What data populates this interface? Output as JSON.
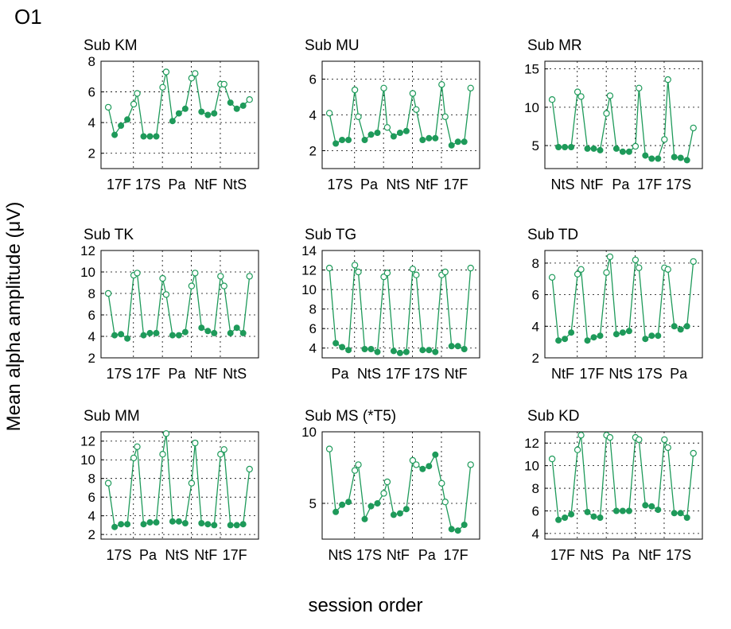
{
  "figure": {
    "label": "O1",
    "ylabel": "Mean alpha amplitude (μV)",
    "xlabel": "session order"
  },
  "style": {
    "series_color": "#1e9a5a",
    "grid_color": "#000000"
  },
  "chart_data": [
    {
      "type": "line",
      "title": "Sub KM",
      "ylim": [
        1,
        8
      ],
      "yticks": [
        2,
        4,
        6,
        8
      ],
      "categories": [
        "17F",
        "17S",
        "Pa",
        "NtF",
        "NtS"
      ],
      "values": [
        [
          5.0,
          3.2,
          3.8,
          4.2,
          5.2
        ],
        [
          5.9,
          3.1,
          3.1,
          3.1,
          6.3
        ],
        [
          7.3,
          4.1,
          4.6,
          4.9,
          6.9
        ],
        [
          7.2,
          4.7,
          4.5,
          4.6,
          6.5
        ],
        [
          6.5,
          5.3,
          4.9,
          5.1,
          5.5
        ]
      ]
    },
    {
      "type": "line",
      "title": "Sub MU",
      "ylim": [
        1,
        7
      ],
      "yticks": [
        2,
        4,
        6
      ],
      "categories": [
        "17S",
        "Pa",
        "NtS",
        "NtF",
        "17F"
      ],
      "values": [
        [
          4.1,
          2.4,
          2.6,
          2.6,
          5.4
        ],
        [
          3.9,
          2.6,
          2.9,
          3.0,
          5.5
        ],
        [
          3.3,
          2.8,
          3.0,
          3.1,
          5.2
        ],
        [
          4.3,
          2.6,
          2.7,
          2.7,
          5.7
        ],
        [
          3.9,
          2.3,
          2.5,
          2.5,
          5.5
        ]
      ]
    },
    {
      "type": "line",
      "title": "Sub MR",
      "ylim": [
        2,
        16
      ],
      "yticks": [
        5,
        10,
        15
      ],
      "categories": [
        "NtS",
        "NtF",
        "Pa",
        "17F",
        "17S"
      ],
      "values": [
        [
          11.0,
          4.8,
          4.8,
          4.8,
          12.0
        ],
        [
          11.4,
          4.6,
          4.6,
          4.4,
          9.2
        ],
        [
          11.5,
          4.6,
          4.2,
          4.2,
          4.9
        ],
        [
          12.5,
          3.7,
          3.3,
          3.3,
          5.8
        ],
        [
          13.6,
          3.5,
          3.4,
          3.1,
          7.3
        ]
      ]
    },
    {
      "type": "line",
      "title": "Sub TK",
      "ylim": [
        2,
        12
      ],
      "yticks": [
        2,
        4,
        6,
        8,
        10,
        12
      ],
      "categories": [
        "17S",
        "17F",
        "Pa",
        "NtF",
        "NtS"
      ],
      "values": [
        [
          8.0,
          4.1,
          4.2,
          3.8,
          9.7
        ],
        [
          9.9,
          4.1,
          4.3,
          4.3,
          9.4
        ],
        [
          7.9,
          4.1,
          4.1,
          4.4,
          8.7
        ],
        [
          9.9,
          4.8,
          4.5,
          4.3,
          9.6
        ],
        [
          8.7,
          4.3,
          4.8,
          4.3,
          9.6
        ]
      ]
    },
    {
      "type": "line",
      "title": "Sub TG",
      "ylim": [
        3,
        14
      ],
      "yticks": [
        4,
        6,
        8,
        10,
        12,
        14
      ],
      "categories": [
        "Pa",
        "NtS",
        "17F",
        "17S",
        "NtF"
      ],
      "values": [
        [
          12.2,
          4.5,
          4.1,
          3.8,
          12.5
        ],
        [
          11.8,
          3.9,
          3.9,
          3.6,
          11.3
        ],
        [
          11.7,
          3.7,
          3.5,
          3.6,
          12.1
        ],
        [
          11.5,
          3.8,
          3.8,
          3.6,
          11.5
        ],
        [
          11.8,
          4.2,
          4.2,
          3.9,
          12.2
        ]
      ]
    },
    {
      "type": "line",
      "title": "Sub TD",
      "ylim": [
        2,
        8.8
      ],
      "yticks": [
        2,
        4,
        6,
        8
      ],
      "categories": [
        "NtF",
        "17F",
        "NtS",
        "17S",
        "Pa"
      ],
      "values": [
        [
          7.1,
          3.1,
          3.2,
          3.6,
          7.3
        ],
        [
          7.6,
          3.1,
          3.3,
          3.4,
          7.4
        ],
        [
          8.4,
          3.5,
          3.6,
          3.7,
          8.2
        ],
        [
          7.7,
          3.2,
          3.4,
          3.4,
          7.7
        ],
        [
          7.6,
          4.0,
          3.8,
          4.0,
          8.1
        ]
      ]
    },
    {
      "type": "line",
      "title": "Sub MM",
      "ylim": [
        1.5,
        13
      ],
      "yticks": [
        2,
        4,
        6,
        8,
        10,
        12
      ],
      "categories": [
        "17S",
        "Pa",
        "NtS",
        "NtF",
        "17F"
      ],
      "values": [
        [
          7.5,
          2.8,
          3.1,
          3.1,
          10.2
        ],
        [
          11.4,
          3.1,
          3.3,
          3.3,
          10.6
        ],
        [
          12.8,
          3.4,
          3.4,
          3.2,
          7.5
        ],
        [
          11.8,
          3.2,
          3.1,
          3.0,
          10.6
        ],
        [
          11.1,
          3.0,
          3.0,
          3.1,
          9.0
        ]
      ]
    },
    {
      "type": "line",
      "title": "Sub MS (*T5)",
      "ylim": [
        2.5,
        10
      ],
      "yticks": [
        5,
        10
      ],
      "categories": [
        "NtS",
        "17S",
        "NtF",
        "Pa",
        "17F"
      ],
      "values": [
        [
          8.8,
          4.4,
          4.9,
          5.1,
          7.3
        ],
        [
          7.7,
          3.9,
          4.8,
          5.0,
          5.7
        ],
        [
          6.5,
          4.2,
          4.3,
          4.6,
          8.0
        ],
        [
          7.7,
          7.4,
          7.6,
          8.4,
          6.4
        ],
        [
          5.1,
          3.2,
          3.1,
          3.5,
          7.7
        ]
      ]
    },
    {
      "type": "line",
      "title": "Sub KD",
      "ylim": [
        3.5,
        13
      ],
      "yticks": [
        4,
        6,
        8,
        10,
        12
      ],
      "categories": [
        "17F",
        "NtS",
        "Pa",
        "NtF",
        "17S"
      ],
      "values": [
        [
          10.6,
          5.2,
          5.4,
          5.7,
          11.4
        ],
        [
          12.7,
          5.9,
          5.5,
          5.4,
          12.7
        ],
        [
          12.5,
          6.0,
          6.0,
          6.0,
          12.5
        ],
        [
          12.3,
          6.5,
          6.4,
          6.1,
          12.3
        ],
        [
          11.6,
          5.8,
          5.8,
          5.4,
          11.1
        ]
      ]
    }
  ]
}
